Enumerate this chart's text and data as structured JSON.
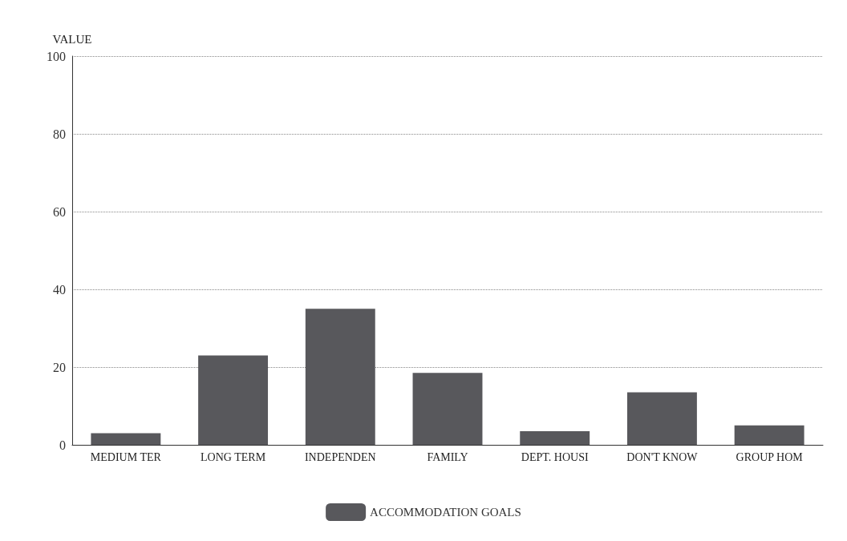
{
  "chart_data": {
    "type": "bar",
    "ylabel": "VALUE",
    "categories": [
      "MEDIUM TER",
      "LONG TERM",
      "INDEPENDEN",
      "FAMILY",
      "DEPT. HOUSI",
      "DON'T KNOW",
      "GROUP HOM"
    ],
    "series": [
      {
        "name": "ACCOMMODATION GOALS",
        "color": "#58585c",
        "values": [
          3,
          23,
          35,
          18.5,
          3.5,
          13.5,
          5
        ]
      }
    ],
    "ylim": [
      0,
      100
    ],
    "yticks": [
      0,
      20,
      40,
      60,
      80,
      100
    ],
    "grid": "y",
    "legend": "bottom"
  }
}
